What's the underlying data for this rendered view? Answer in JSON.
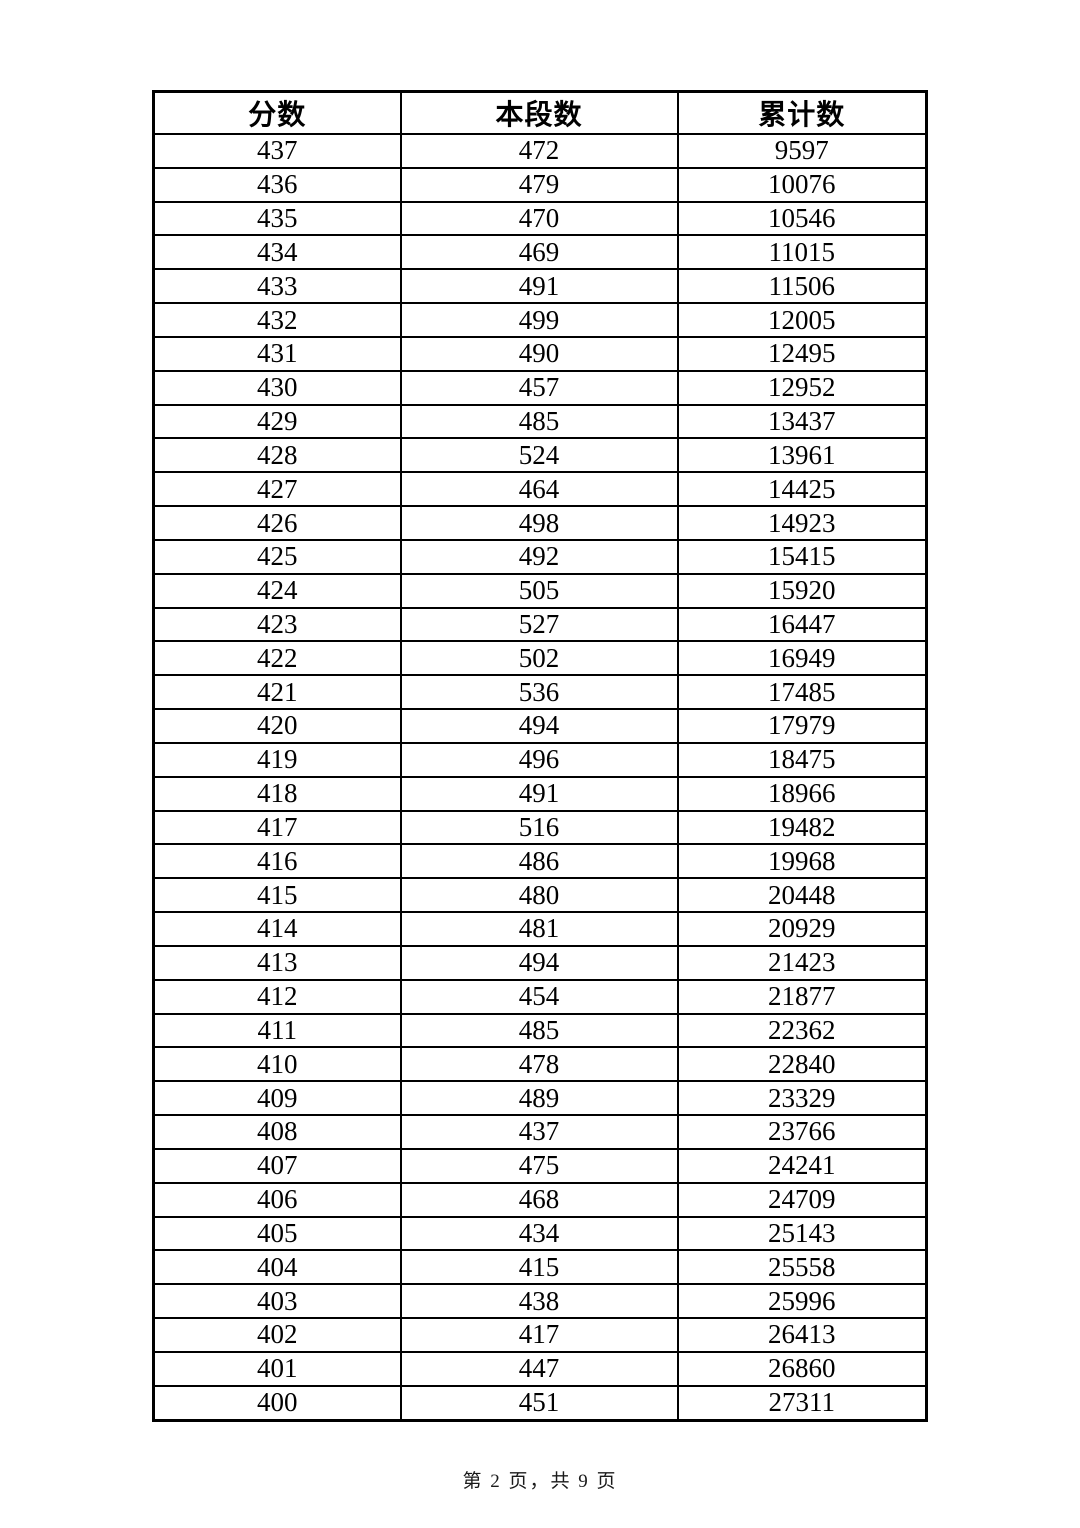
{
  "table": {
    "headers": [
      "分数",
      "本段数",
      "累计数"
    ],
    "rows": [
      [
        437,
        472,
        9597
      ],
      [
        436,
        479,
        10076
      ],
      [
        435,
        470,
        10546
      ],
      [
        434,
        469,
        11015
      ],
      [
        433,
        491,
        11506
      ],
      [
        432,
        499,
        12005
      ],
      [
        431,
        490,
        12495
      ],
      [
        430,
        457,
        12952
      ],
      [
        429,
        485,
        13437
      ],
      [
        428,
        524,
        13961
      ],
      [
        427,
        464,
        14425
      ],
      [
        426,
        498,
        14923
      ],
      [
        425,
        492,
        15415
      ],
      [
        424,
        505,
        15920
      ],
      [
        423,
        527,
        16447
      ],
      [
        422,
        502,
        16949
      ],
      [
        421,
        536,
        17485
      ],
      [
        420,
        494,
        17979
      ],
      [
        419,
        496,
        18475
      ],
      [
        418,
        491,
        18966
      ],
      [
        417,
        516,
        19482
      ],
      [
        416,
        486,
        19968
      ],
      [
        415,
        480,
        20448
      ],
      [
        414,
        481,
        20929
      ],
      [
        413,
        494,
        21423
      ],
      [
        412,
        454,
        21877
      ],
      [
        411,
        485,
        22362
      ],
      [
        410,
        478,
        22840
      ],
      [
        409,
        489,
        23329
      ],
      [
        408,
        437,
        23766
      ],
      [
        407,
        475,
        24241
      ],
      [
        406,
        468,
        24709
      ],
      [
        405,
        434,
        25143
      ],
      [
        404,
        415,
        25558
      ],
      [
        403,
        438,
        25996
      ],
      [
        402,
        417,
        26413
      ],
      [
        401,
        447,
        26860
      ],
      [
        400,
        451,
        27311
      ]
    ]
  },
  "footer": {
    "page_text": "第 2 页，共 9 页"
  }
}
